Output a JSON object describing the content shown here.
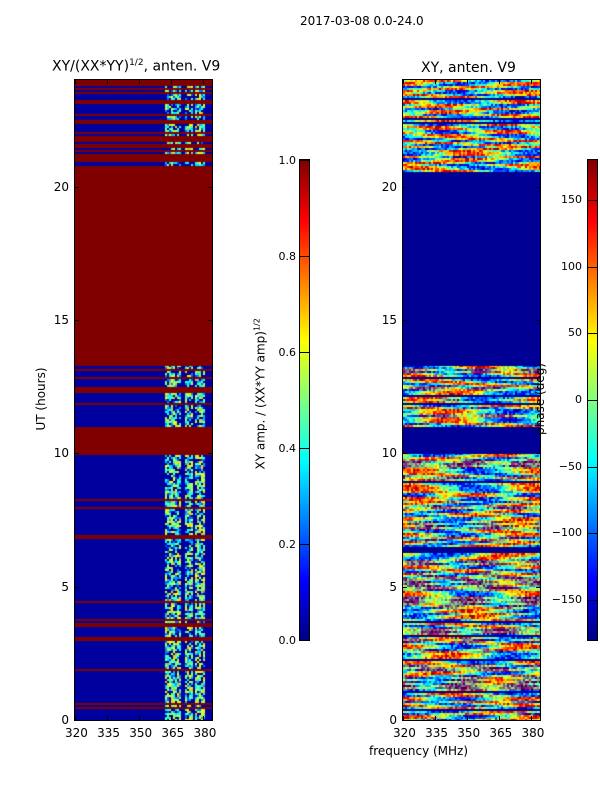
{
  "chart_data": [
    {
      "type": "heatmap",
      "title": "XY/(XX*YY)^1/2, anten. V9",
      "title_main": "XY/(XX*YY)",
      "title_sup": "1/2",
      "title_rest": ", anten. V9",
      "ylabel": "UT (hours)",
      "xlabel": "",
      "xlim": [
        320,
        384
      ],
      "ylim": [
        0,
        24
      ],
      "xticks": [
        "320",
        "335",
        "350",
        "365",
        "380"
      ],
      "xtick_values": [
        320,
        335,
        350,
        365,
        380
      ],
      "yticks": [
        "0",
        "5",
        "10",
        "15",
        "20"
      ],
      "ytick_values": [
        0,
        5,
        10,
        15,
        20
      ],
      "colormap": "jet",
      "clim": [
        0,
        1
      ],
      "colorbar": {
        "label": "XY amp. / (XX*YY amp)^1/2",
        "label_main": "XY amp. / (XX*YY amp)",
        "label_sup": "1/2",
        "ticks": [
          "0.0",
          "0.2",
          "0.4",
          "0.6",
          "0.8",
          "1.0"
        ],
        "tick_values": [
          0,
          0.2,
          0.4,
          0.6,
          0.8,
          1.0
        ]
      },
      "bands": [
        {
          "ut": [
            0,
            10
          ],
          "pattern": "low_with_red_stripes_mixed_365_380"
        },
        {
          "ut": [
            10,
            11
          ],
          "pattern": "high"
        },
        {
          "ut": [
            11,
            13.3
          ],
          "pattern": "low_with_red_stripes_mixed_365_380"
        },
        {
          "ut": [
            13.3,
            20.6
          ],
          "pattern": "high"
        },
        {
          "ut": [
            20.6,
            24
          ],
          "pattern": "red_blue_stripes_mixed_365_380"
        }
      ]
    },
    {
      "type": "heatmap",
      "title": "XY, anten. V9",
      "ylabel": "phase (deg)",
      "xlabel": "frequency (MHz)",
      "xlim": [
        320,
        384
      ],
      "ylim": [
        0,
        24
      ],
      "xticks": [
        "320",
        "335",
        "350",
        "365",
        "380"
      ],
      "xtick_values": [
        320,
        335,
        350,
        365,
        380
      ],
      "yticks": [
        "0",
        "5",
        "10",
        "15",
        "20"
      ],
      "ytick_values": [
        0,
        5,
        10,
        15,
        20
      ],
      "colormap": "jet",
      "clim": [
        -180,
        180
      ],
      "colorbar": {
        "label": "phase (deg)",
        "ticks": [
          "−150",
          "−100",
          "−50",
          "0",
          "50",
          "100",
          "150"
        ],
        "tick_values": [
          -150,
          -100,
          -50,
          0,
          50,
          100,
          150
        ]
      },
      "bands": [
        {
          "ut": [
            0,
            10
          ],
          "pattern": "random_phase"
        },
        {
          "ut": [
            10,
            11
          ],
          "pattern": "low"
        },
        {
          "ut": [
            11,
            13.3
          ],
          "pattern": "random_phase"
        },
        {
          "ut": [
            13.3,
            20.6
          ],
          "pattern": "low"
        },
        {
          "ut": [
            20.6,
            24
          ],
          "pattern": "random_phase"
        }
      ]
    }
  ],
  "suptitle": "2017-03-08 0.0-24.0"
}
